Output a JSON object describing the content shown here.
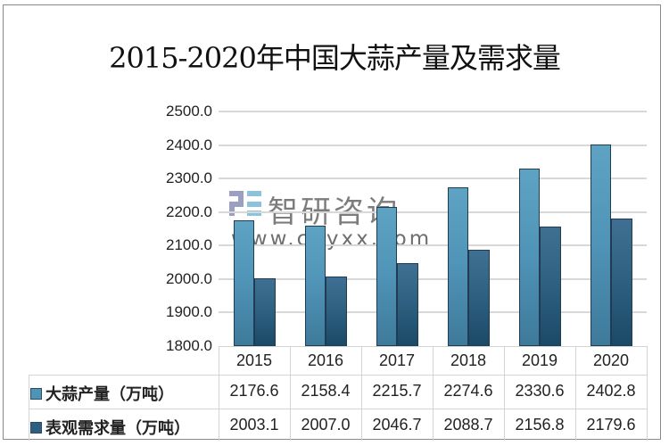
{
  "title": "2015-2020年中国大蒜产量及需求量",
  "watermark": {
    "brand": "智研咨询",
    "url": "www.chyxx.com",
    "logo": "chyxx-logo-icon"
  },
  "y_axis": {
    "ticks": [
      "2500.0",
      "2400.0",
      "2300.0",
      "2200.0",
      "2100.0",
      "2000.0",
      "1900.0",
      "1800.0"
    ]
  },
  "table": {
    "years": [
      "2015",
      "2016",
      "2017",
      "2018",
      "2019",
      "2020"
    ],
    "rows": [
      {
        "label": "大蒜产量（万吨）",
        "color": "#4f93b6",
        "values": [
          "2176.6",
          "2158.4",
          "2215.7",
          "2274.6",
          "2330.6",
          "2402.8"
        ]
      },
      {
        "label": "表观需求量（万吨）",
        "color": "#2f5f80",
        "values": [
          "2003.1",
          "2007.0",
          "2046.7",
          "2088.7",
          "2156.8",
          "2179.6"
        ]
      }
    ]
  },
  "chart_data": {
    "type": "bar",
    "title": "2015-2020年中国大蒜产量及需求量",
    "categories": [
      "2015",
      "2016",
      "2017",
      "2018",
      "2019",
      "2020"
    ],
    "series": [
      {
        "name": "大蒜产量（万吨）",
        "values": [
          2176.6,
          2158.4,
          2215.7,
          2274.6,
          2330.6,
          2402.8
        ],
        "color": "#4f93b6"
      },
      {
        "name": "表观需求量（万吨）",
        "values": [
          2003.1,
          2007.0,
          2046.7,
          2088.7,
          2156.8,
          2179.6
        ],
        "color": "#2f5f80"
      }
    ],
    "xlabel": "",
    "ylabel": "",
    "ylim": [
      1800,
      2500
    ],
    "yticks": [
      1800,
      1900,
      2000,
      2100,
      2200,
      2300,
      2400,
      2500
    ],
    "grid": true,
    "legend": "data table below chart"
  }
}
